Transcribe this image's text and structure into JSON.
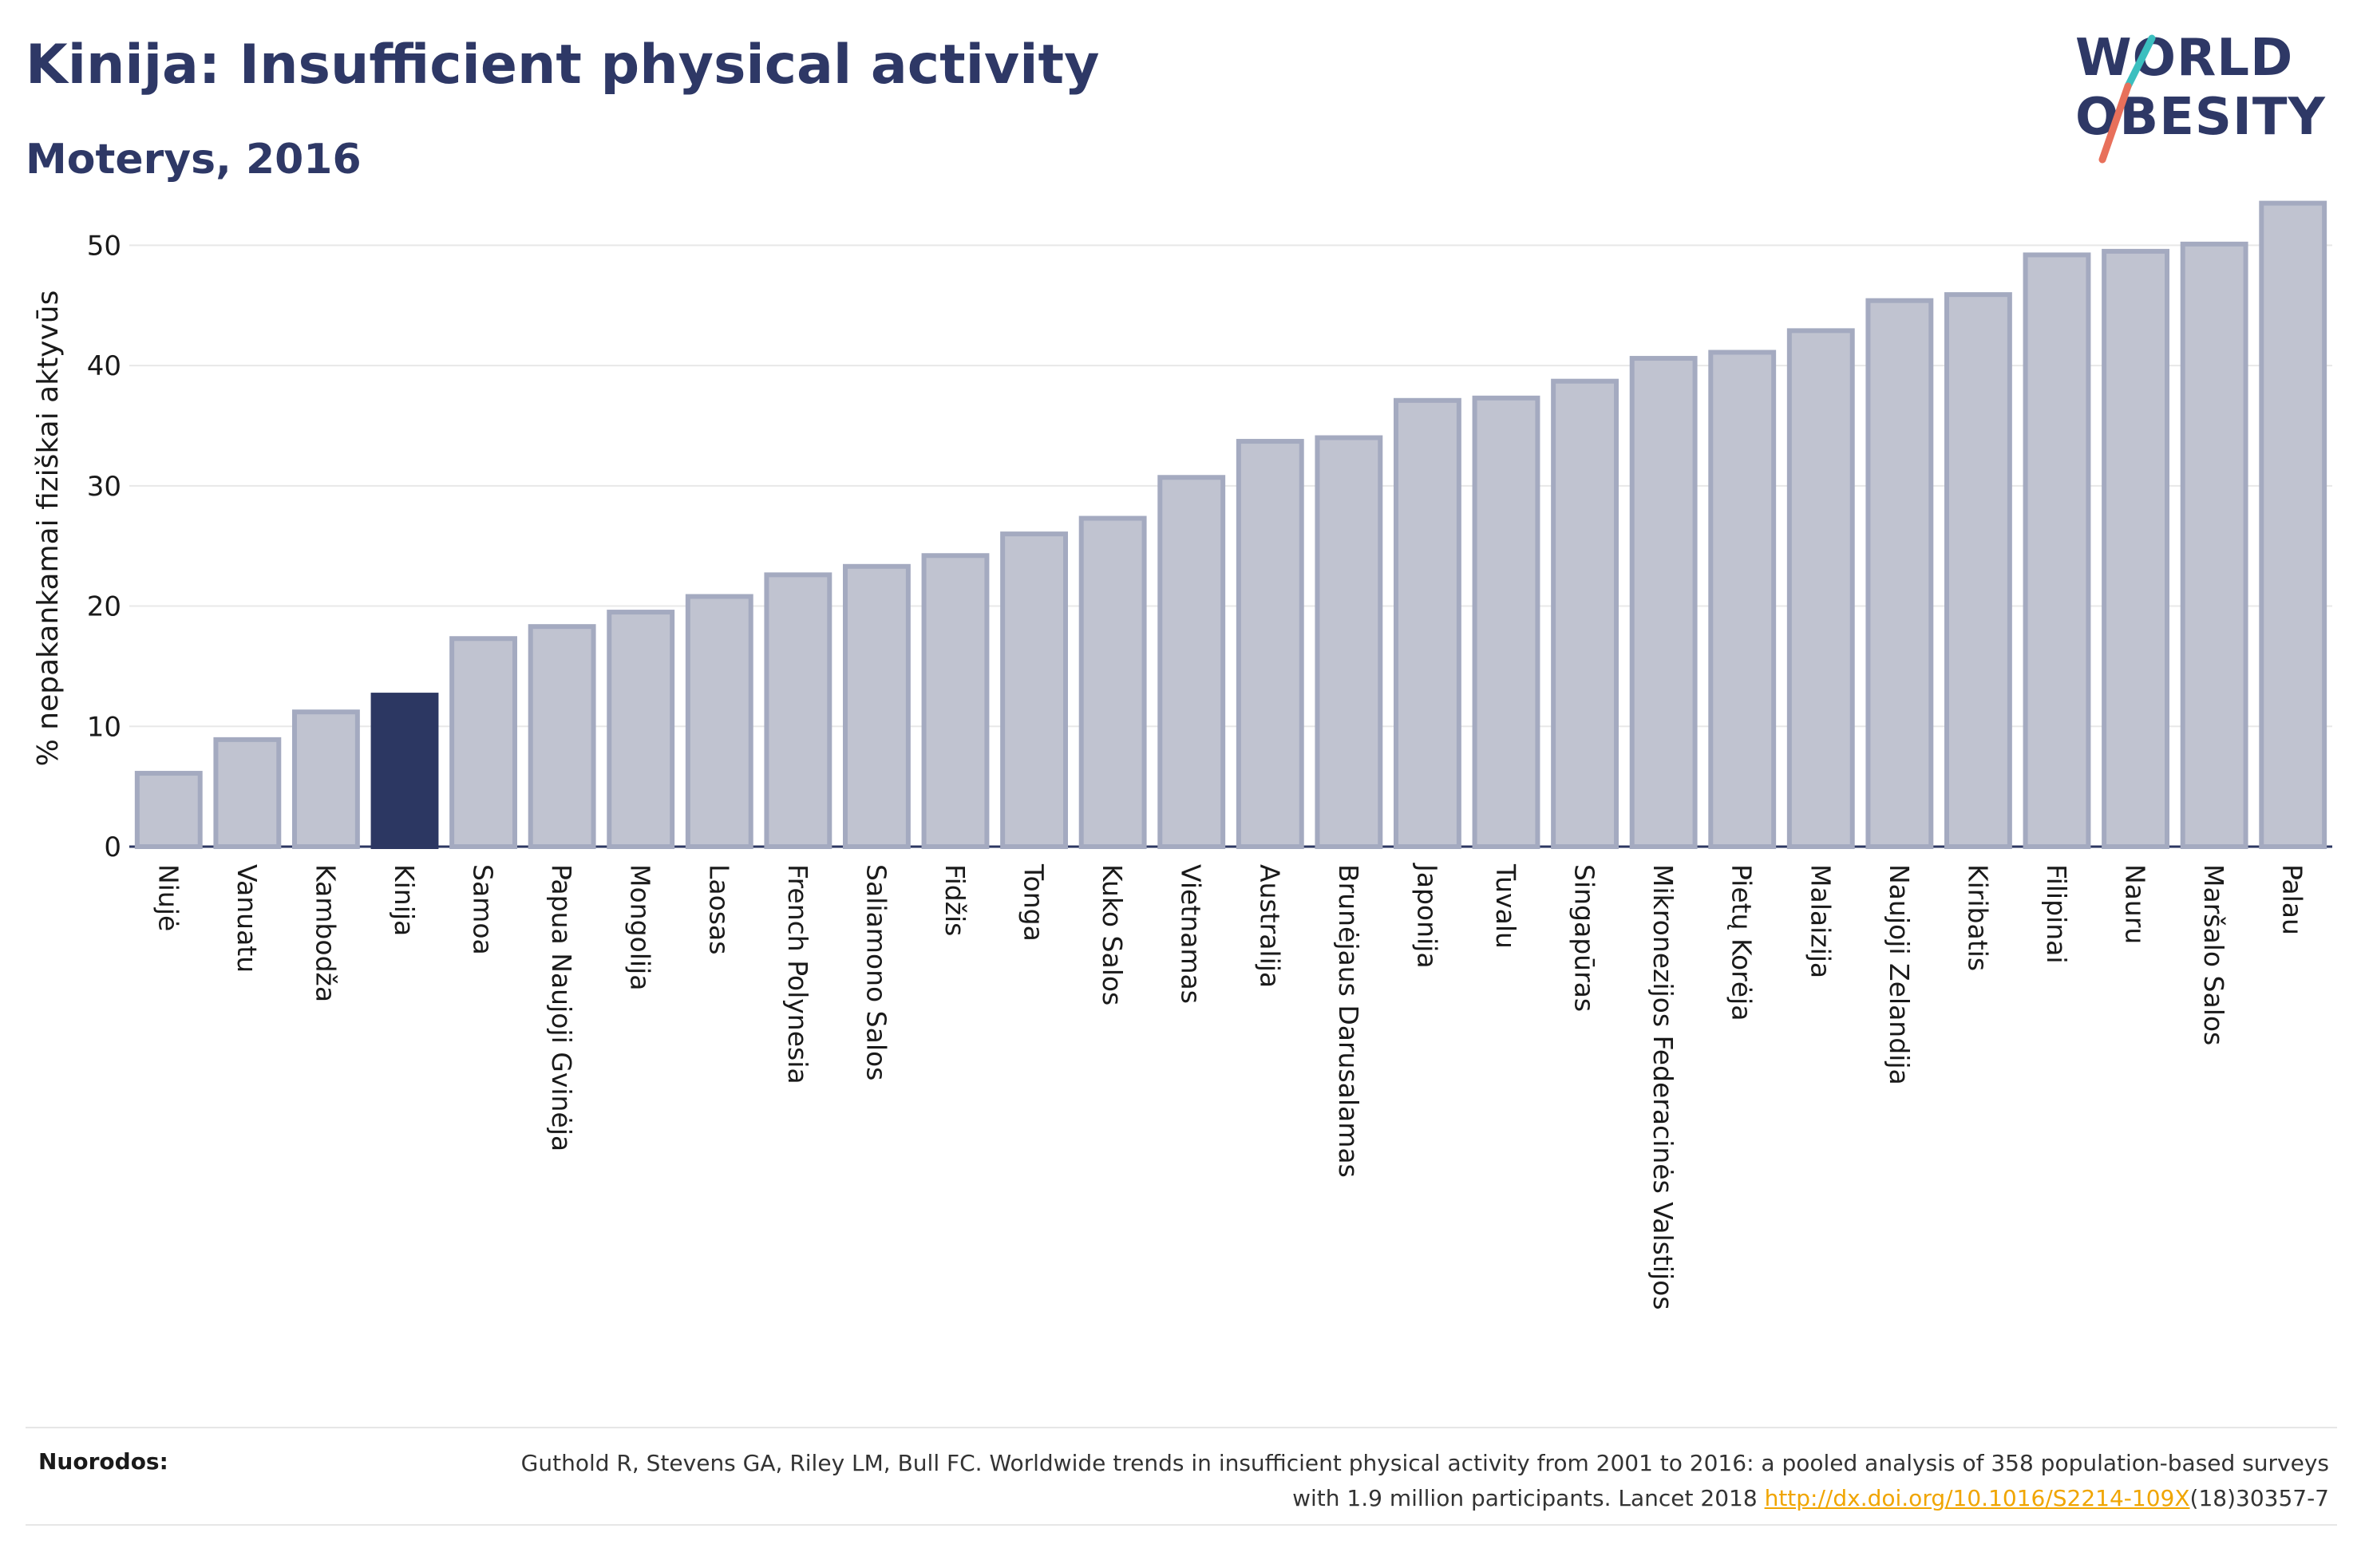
{
  "title": "Kinija: Insufficient physical activity",
  "subtitle": "Moterys, 2016",
  "logo": {
    "line1": "WORLD",
    "line2": "OBESITY"
  },
  "colors": {
    "bar": "#c0c3d0",
    "bar_stroke": "#a4aac0",
    "highlight": "#2c3762",
    "slash_teal": "#3bbfbf",
    "slash_coral": "#e8705b"
  },
  "chart_data": {
    "type": "bar",
    "ylabel": "% nepakankamai fiziškai aktyvūs",
    "ylim": [
      0,
      55
    ],
    "yticks": [
      0,
      10,
      20,
      30,
      40,
      50
    ],
    "grid": true,
    "highlight": "Kinija",
    "categories": [
      "Niujė",
      "Vanuatu",
      "Kambodža",
      "Kinija",
      "Samoa",
      "Papua Naujoji Gvinėja",
      "Mongolija",
      "Laosas",
      "French Polynesia",
      "Saliamono Salos",
      "Fidžis",
      "Tonga",
      "Kuko Salos",
      "Vietnamas",
      "Australija",
      "Brunėjaus Darusalamas",
      "Japonija",
      "Tuvalu",
      "Singapūras",
      "Mikronezijos Federacinės Valstijos",
      "Pietų Korėja",
      "Malaizija",
      "Naujoji Zelandija",
      "Kiribatis",
      "Filipinai",
      "Nauru",
      "Maršalo Salos",
      "Palau"
    ],
    "values": [
      6.1,
      8.9,
      11.2,
      12.6,
      17.3,
      18.3,
      19.5,
      20.8,
      22.6,
      23.3,
      24.2,
      26.0,
      27.3,
      30.7,
      33.7,
      34.0,
      37.1,
      37.3,
      38.7,
      40.6,
      41.1,
      42.9,
      45.4,
      45.9,
      49.2,
      49.5,
      50.1,
      53.5
    ]
  },
  "references": {
    "label": "Nuorodos:",
    "text_before": "Guthold R, Stevens GA, Riley LM, Bull FC. Worldwide trends in insufficient physical activity from 2001 to 2016: a pooled analysis of 358 population-based surveys with 1.9 million participants. Lancet 2018 ",
    "link": "http://dx.doi.org/10.1016/S2214-109X",
    "text_after": "(18)30357-7"
  }
}
